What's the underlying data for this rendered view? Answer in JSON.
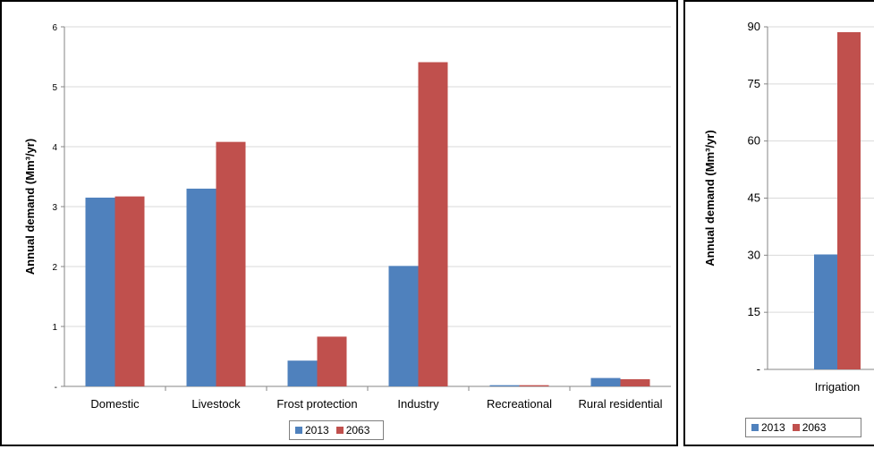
{
  "chart_data": [
    {
      "type": "bar",
      "title": "",
      "xlabel": "",
      "ylabel": "Annual demand (Mm³/yr)",
      "ylim": [
        0,
        6
      ],
      "yticks": [
        "-",
        "1",
        "2",
        "3",
        "4",
        "5",
        "6"
      ],
      "categories": [
        "Domestic",
        "Livestock",
        "Frost protection",
        "Industry",
        "Recreational",
        "Rural residential"
      ],
      "series": [
        {
          "name": "2013",
          "color": "#4f81bd",
          "values": [
            3.15,
            3.3,
            0.43,
            2.01,
            0.02,
            0.14
          ]
        },
        {
          "name": "2063",
          "color": "#c0504d",
          "values": [
            3.17,
            4.08,
            0.83,
            5.41,
            0.02,
            0.12
          ]
        }
      ],
      "grid": "horizontal",
      "legend": "bottom"
    },
    {
      "type": "bar",
      "title": "",
      "xlabel": "",
      "ylabel": "Annual demand (Mm³/yr)",
      "ylim": [
        0,
        90
      ],
      "yticks": [
        "-",
        "15",
        "30",
        "45",
        "60",
        "75",
        "90"
      ],
      "categories": [
        "Irrigation"
      ],
      "series": [
        {
          "name": "2013",
          "color": "#4f81bd",
          "values": [
            30.2
          ]
        },
        {
          "name": "2063",
          "color": "#c0504d",
          "values": [
            88.6
          ]
        }
      ],
      "grid": "horizontal",
      "legend": "bottom"
    }
  ]
}
